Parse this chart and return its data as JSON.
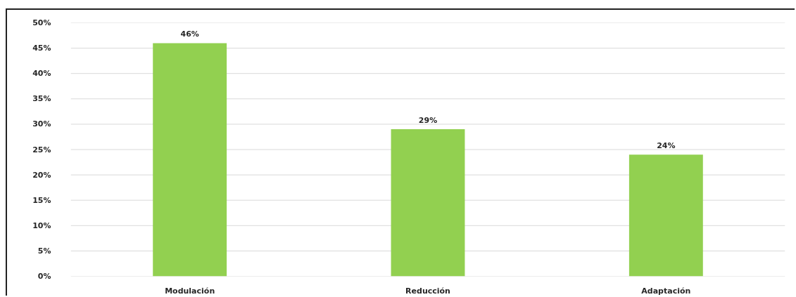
{
  "chart_data": {
    "type": "bar",
    "categories": [
      "Modulación",
      "Reducción",
      "Adaptación"
    ],
    "values": [
      46,
      29,
      24
    ],
    "value_labels": [
      "46%",
      "29%",
      "24%"
    ],
    "color": "#92d050",
    "ylim": [
      0,
      50
    ],
    "yticks": [
      {
        "value": 0,
        "label": "0%"
      },
      {
        "value": 5,
        "label": "5%"
      },
      {
        "value": 10,
        "label": "10%"
      },
      {
        "value": 15,
        "label": "15%"
      },
      {
        "value": 20,
        "label": "20%"
      },
      {
        "value": 25,
        "label": "25%"
      },
      {
        "value": 30,
        "label": "30%"
      },
      {
        "value": 35,
        "label": "35%"
      },
      {
        "value": 40,
        "label": "40%"
      },
      {
        "value": 45,
        "label": "45%"
      },
      {
        "value": 50,
        "label": "50%"
      }
    ],
    "grid": "y"
  }
}
